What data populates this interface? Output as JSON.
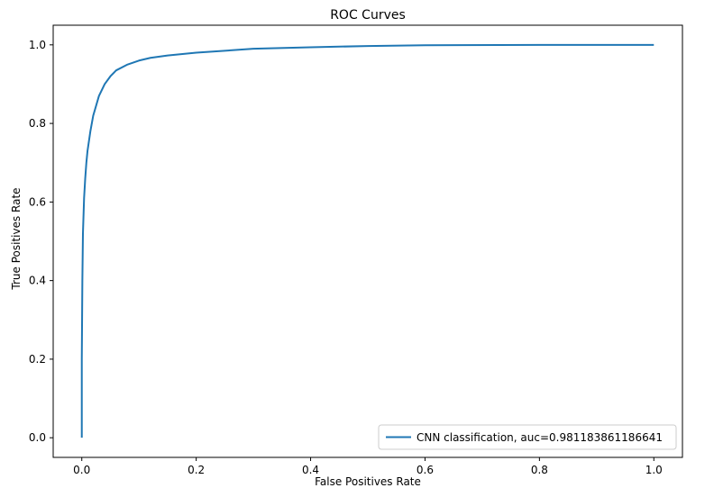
{
  "chart_data": {
    "type": "line",
    "title": "ROC Curves",
    "xlabel": "False Positives Rate",
    "ylabel": "True Positives Rate",
    "xlim": [
      -0.05,
      1.05
    ],
    "ylim": [
      -0.05,
      1.05
    ],
    "xticks": [
      "0.0",
      "0.2",
      "0.4",
      "0.6",
      "0.8",
      "1.0"
    ],
    "yticks": [
      "0.0",
      "0.2",
      "0.4",
      "0.6",
      "0.8",
      "1.0"
    ],
    "grid": false,
    "legend_position": "lower-right",
    "series": [
      {
        "name": "CNN classification, auc=0.981183861186641",
        "color": "#1f77b4",
        "x": [
          0.0,
          0.0,
          0.001,
          0.002,
          0.004,
          0.006,
          0.008,
          0.01,
          0.015,
          0.02,
          0.03,
          0.04,
          0.05,
          0.06,
          0.08,
          0.1,
          0.12,
          0.15,
          0.2,
          0.3,
          0.4,
          0.5,
          0.6,
          0.8,
          1.0
        ],
        "y": [
          0.0,
          0.2,
          0.4,
          0.52,
          0.61,
          0.66,
          0.7,
          0.73,
          0.78,
          0.82,
          0.87,
          0.9,
          0.92,
          0.935,
          0.95,
          0.96,
          0.967,
          0.973,
          0.98,
          0.99,
          0.994,
          0.997,
          0.999,
          1.0,
          1.0
        ]
      }
    ]
  }
}
